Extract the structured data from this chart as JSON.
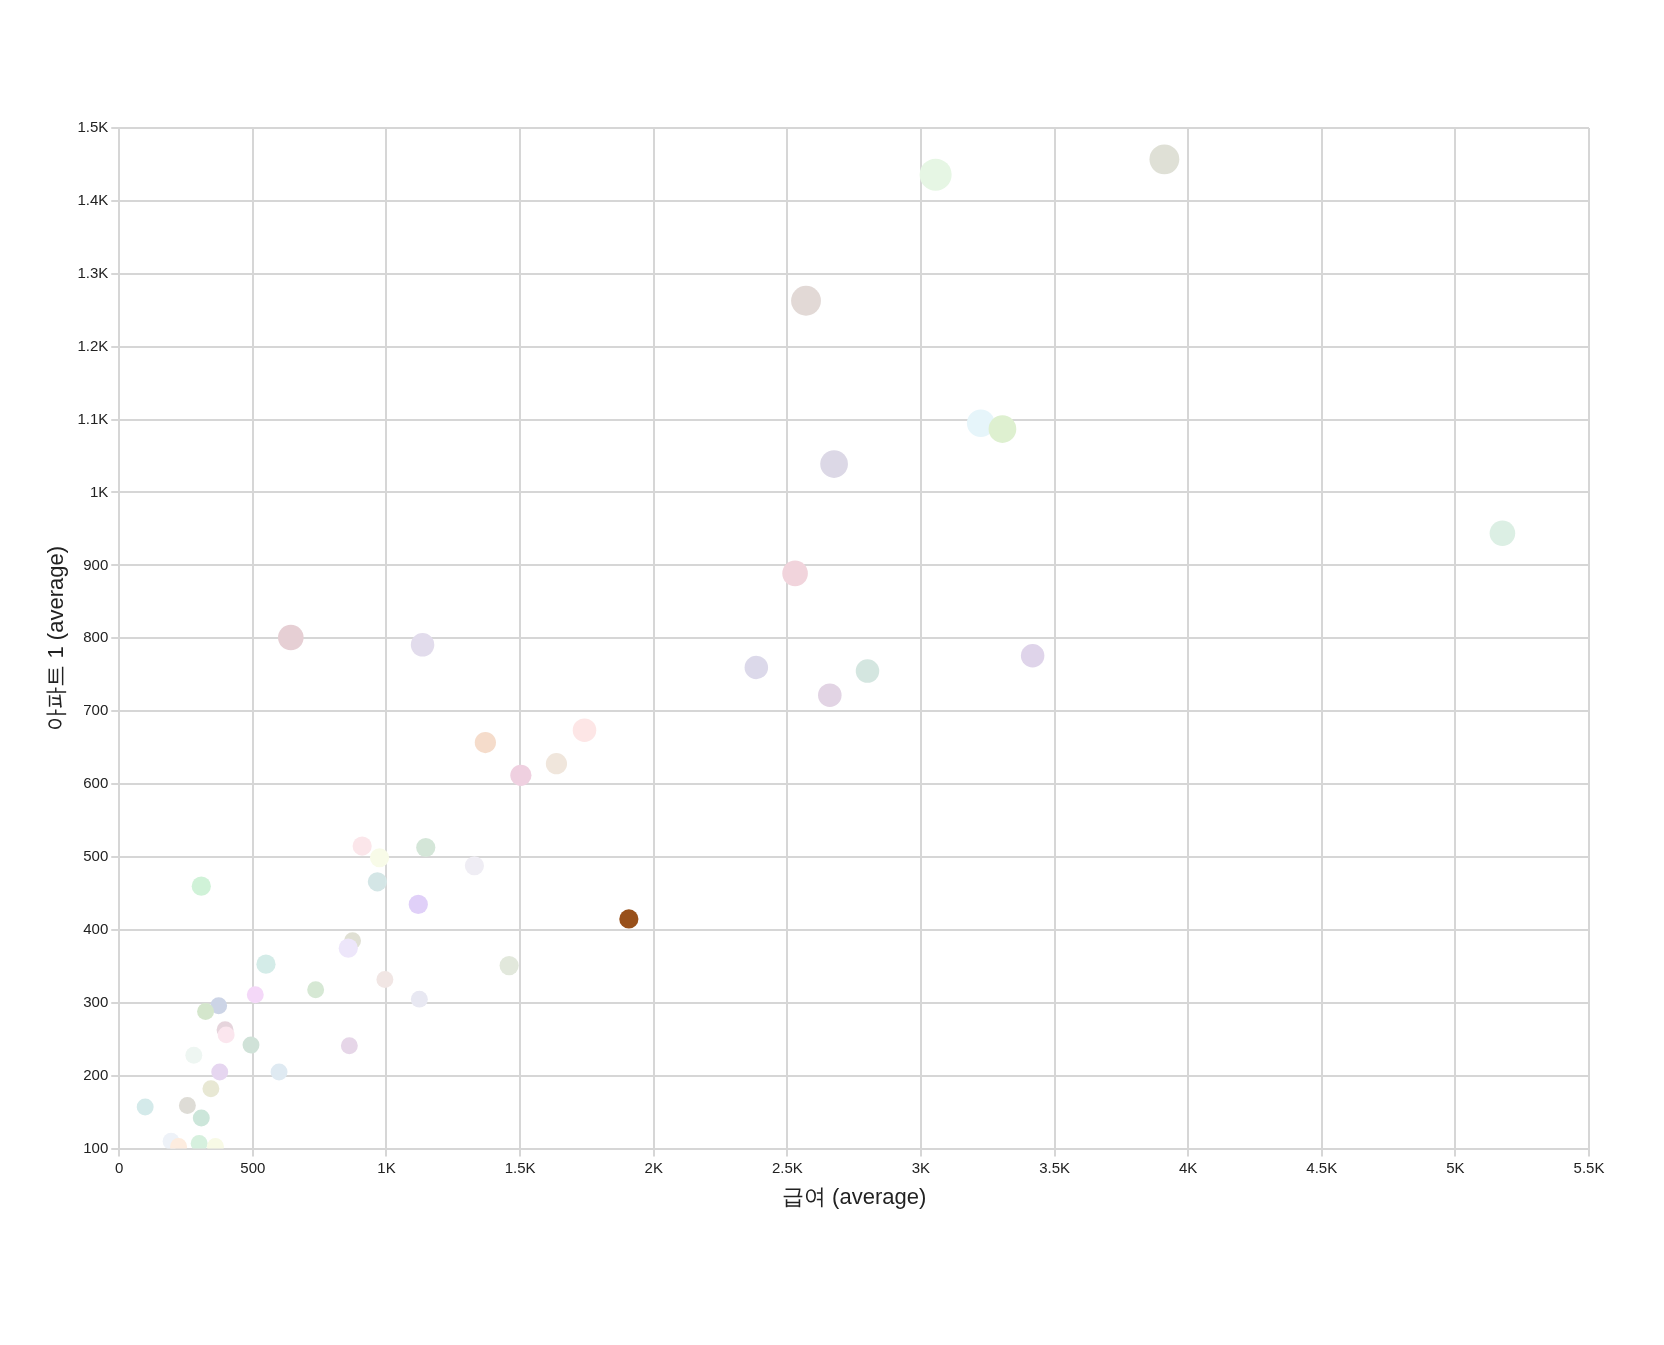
{
  "chart_data": {
    "type": "bubble",
    "xlabel": "급여 (average)",
    "ylabel": "아파트 1 (average)",
    "xlim": [
      0,
      5500
    ],
    "ylim": [
      100,
      1500
    ],
    "xticks": [
      0,
      500,
      {
        "value": 1000,
        "label": "1K"
      },
      {
        "value": 1500,
        "label": "1.5K"
      },
      {
        "value": 2000,
        "label": "2K"
      },
      {
        "value": 2500,
        "label": "2.5K"
      },
      {
        "value": 3000,
        "label": "3K"
      },
      {
        "value": 3500,
        "label": "3.5K"
      },
      {
        "value": 4000,
        "label": "4K"
      },
      {
        "value": 4500,
        "label": "4.5K"
      },
      {
        "value": 5000,
        "label": "5K"
      },
      {
        "value": 5500,
        "label": "5.5K"
      }
    ],
    "yticks": [
      100,
      200,
      300,
      400,
      500,
      600,
      700,
      800,
      900,
      {
        "value": 1000,
        "label": "1K"
      },
      {
        "value": 1100,
        "label": "1.1K"
      },
      {
        "value": 1200,
        "label": "1.2K"
      },
      {
        "value": 1300,
        "label": "1.3K"
      },
      {
        "value": 1400,
        "label": "1.4K"
      },
      {
        "value": 1500,
        "label": "1.5K"
      }
    ],
    "grid": true,
    "marker": "circle",
    "series": [
      {
        "x": [
          3911,
          3055,
          2570,
          3224,
          3305,
          2675,
          5176,
          2529,
          642,
          1135,
          3418,
          2384,
          2800,
          2659,
          1741,
          1370,
          1636,
          1503,
          909,
          1147,
          974,
          1329,
          307,
          966,
          1119,
          1907,
          873,
          857,
          549,
          1459,
          994,
          735,
          509,
          1123,
          372,
          323,
          396,
          400,
          493,
          861,
          279,
          598,
          376,
          343,
          97,
          255,
          307,
          194,
          299,
          222,
          360
        ],
        "values": [
          1457,
          1436,
          1263,
          1095,
          1087,
          1039,
          944,
          889,
          801,
          791,
          776,
          760,
          755,
          722,
          674,
          657,
          628,
          612,
          515,
          513,
          499,
          488,
          460,
          466,
          435,
          415,
          385,
          375,
          353,
          351,
          332,
          318,
          311,
          305,
          296,
          288,
          263,
          256,
          242,
          241,
          228,
          205,
          205,
          182,
          157,
          159,
          142,
          110,
          107,
          103,
          103
        ],
        "sizes": [
          0.87,
          1,
          0.87,
          0.75,
          0.75,
          0.75,
          0.64,
          0.64,
          0.64,
          0.54,
          0.54,
          0.54,
          0.54,
          0.54,
          0.54,
          0.44,
          0.44,
          0.44,
          0.36,
          0.36,
          0.36,
          0.36,
          0.36,
          0.36,
          0.36,
          0.36,
          0.28,
          0.36,
          0.36,
          0.36,
          0.28,
          0.28,
          0.28,
          0.28,
          0.28,
          0.28,
          0.28,
          0.28,
          0.28,
          0.28,
          0.28,
          0.28,
          0.28,
          0.28,
          0.28,
          0.28,
          0.28,
          0.28,
          0.28,
          0.28,
          0.28
        ],
        "colors": [
          "#dfe0d6",
          "#e6f6e4",
          "#e2d9d6",
          "#e6f5fa",
          "#def0d0",
          "#dcd8e6",
          "#dcefe4",
          "#f1d4dc",
          "#e6cfd4",
          "#e2dcec",
          "#dfd4ea",
          "#dcd9ea",
          "#d4e6e0",
          "#e2d4e4",
          "#fde6e6",
          "#f5dccb",
          "#f0e6dc",
          "#efd0e0",
          "#fbe6ea",
          "#d4e6d8",
          "#f8fbe8",
          "#efedf4",
          "#d0f2d8",
          "#d4e6e6",
          "#e0d0f8",
          "#98501a",
          "#e0e0d4",
          "#ede6fa",
          "#d4ece8",
          "#e2e8dc",
          "#f1e6e4",
          "#d6e8d4",
          "#f4d8f8",
          "#e8e8f2",
          "#ccd4e6",
          "#d4e6cc",
          "#e6d4dc",
          "#fbe6ee",
          "#d0e2d8",
          "#e6d6e8",
          "#eef6f2",
          "#dfeaf2",
          "#e6d6f0",
          "#e8e8d4",
          "#d4eaea",
          "#dedcd6",
          "#cce6da",
          "#eef2f8",
          "#d6f0de",
          "#fdecdf",
          "#f8fae6"
        ]
      }
    ]
  }
}
